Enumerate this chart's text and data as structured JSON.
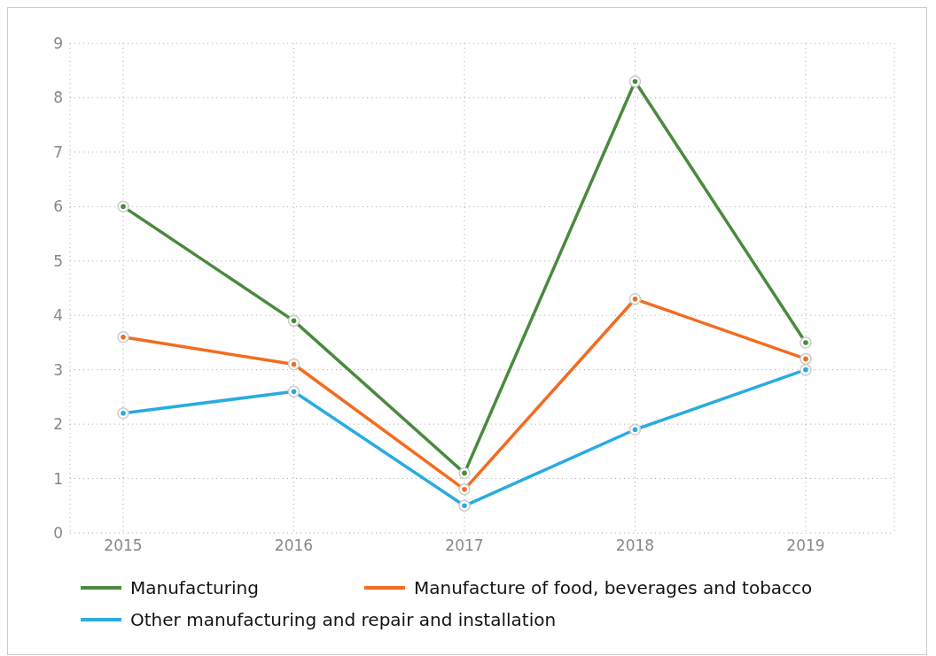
{
  "chart_data": {
    "type": "line",
    "categories": [
      "2015",
      "2016",
      "2017",
      "2018",
      "2019"
    ],
    "series": [
      {
        "name": "Manufacturing",
        "color": "#4a8a3f",
        "values": [
          6.0,
          3.9,
          1.1,
          8.3,
          3.5
        ]
      },
      {
        "name": "Manufacture of food, beverages and tobacco",
        "color": "#f26c21",
        "values": [
          3.6,
          3.1,
          0.8,
          4.3,
          3.2
        ]
      },
      {
        "name": "Other manufacturing and repair and installation",
        "color": "#29abe2",
        "values": [
          2.2,
          2.6,
          0.5,
          1.9,
          3.0
        ]
      }
    ],
    "ylim": [
      0,
      9
    ],
    "yticks": [
      0,
      1,
      2,
      3,
      4,
      5,
      6,
      7,
      8,
      9
    ],
    "grid": true,
    "legend": "bottom",
    "marker": "circle",
    "line_style": "solid"
  }
}
